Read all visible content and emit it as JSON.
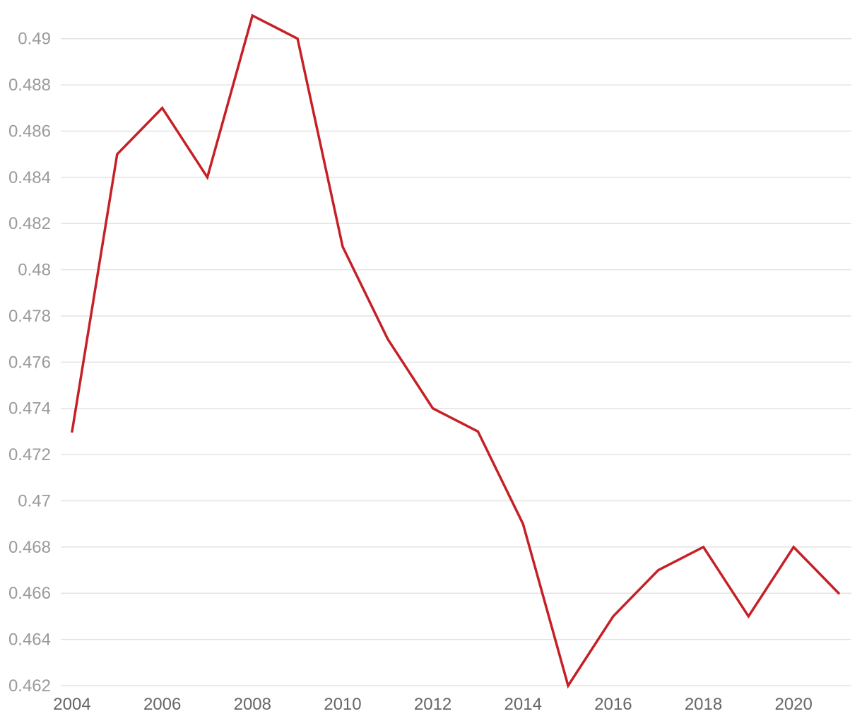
{
  "chart_data": {
    "type": "line",
    "title": "",
    "xlabel": "",
    "ylabel": "",
    "x": [
      2004,
      2005,
      2006,
      2007,
      2008,
      2009,
      2010,
      2011,
      2012,
      2013,
      2014,
      2015,
      2016,
      2017,
      2018,
      2019,
      2020,
      2021
    ],
    "series": [
      {
        "color": "#c62026",
        "values": [
          0.473,
          0.485,
          0.487,
          0.484,
          0.491,
          0.49,
          0.481,
          0.477,
          0.474,
          0.473,
          0.469,
          0.462,
          0.465,
          0.467,
          0.468,
          0.465,
          0.468,
          0.466
        ]
      }
    ],
    "xlim": [
      2004,
      2021
    ],
    "ylim": [
      0.462,
      0.491
    ],
    "y_ticks": [
      "0.462",
      "0.464",
      "0.466",
      "0.468",
      "0.47",
      "0.472",
      "0.474",
      "0.476",
      "0.478",
      "0.48",
      "0.482",
      "0.484",
      "0.486",
      "0.488",
      "0.49"
    ],
    "x_ticks": [
      "2004",
      "2006",
      "2008",
      "2010",
      "2012",
      "2014",
      "2016",
      "2018",
      "2020"
    ],
    "grid": true,
    "legend": "none"
  }
}
